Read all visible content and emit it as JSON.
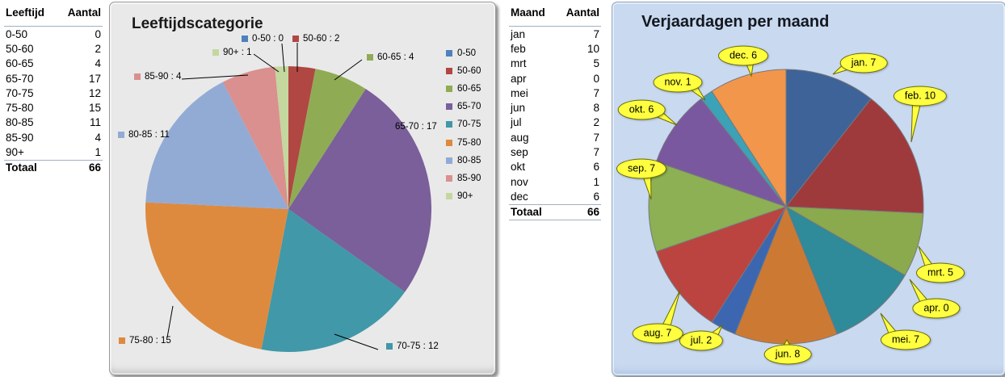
{
  "age_table": {
    "header": {
      "category": "Leeftijd",
      "count": "Aantal"
    },
    "rows": [
      [
        "0-50",
        0
      ],
      [
        "50-60",
        2
      ],
      [
        "60-65",
        4
      ],
      [
        "65-70",
        17
      ],
      [
        "70-75",
        12
      ],
      [
        "75-80",
        15
      ],
      [
        "80-85",
        11
      ],
      [
        "85-90",
        4
      ],
      [
        "90+",
        1
      ]
    ],
    "total_label": "Totaal",
    "total_value": 66
  },
  "month_table": {
    "header": {
      "category": "Maand",
      "count": "Aantal"
    },
    "rows": [
      [
        "jan",
        7
      ],
      [
        "feb",
        10
      ],
      [
        "mrt",
        5
      ],
      [
        "apr",
        0
      ],
      [
        "mei",
        7
      ],
      [
        "jun",
        8
      ],
      [
        "jul",
        2
      ],
      [
        "aug",
        7
      ],
      [
        "sep",
        7
      ],
      [
        "okt",
        6
      ],
      [
        "nov",
        1
      ],
      [
        "dec",
        6
      ]
    ],
    "total_label": "Totaal",
    "total_value": 66
  },
  "chart_data": [
    {
      "type": "pie",
      "title": "Leeftijdscategorie",
      "categories": [
        "0-50",
        "50-60",
        "60-65",
        "65-70",
        "70-75",
        "75-80",
        "80-85",
        "85-90",
        "90+"
      ],
      "values": [
        0,
        2,
        4,
        17,
        12,
        15,
        11,
        4,
        1
      ],
      "total": 66,
      "label_format": "{category} : {value}",
      "legend_position": "right",
      "legend_entries": [
        "0-50",
        "50-60",
        "60-65",
        "65-70",
        "70-75",
        "75-80",
        "80-85",
        "85-90",
        "90+"
      ],
      "colors": [
        "#4F81BD",
        "#B04743",
        "#8FAC54",
        "#7A5F9A",
        "#4198A8",
        "#DD8A3E",
        "#92ABD5",
        "#D9908F",
        "#C4D79E"
      ],
      "background": "#E9E9E9"
    },
    {
      "type": "pie",
      "title": "Verjaardagen per maand",
      "categories": [
        "jan",
        "feb",
        "mrt",
        "apr",
        "mei",
        "jun",
        "jul",
        "aug",
        "sep",
        "okt",
        "nov",
        "dec"
      ],
      "values": [
        7,
        10,
        5,
        0,
        7,
        8,
        2,
        7,
        7,
        6,
        1,
        6
      ],
      "total": 66,
      "label_format": "{category}. {value}",
      "label_style": "yellow-callout",
      "callout_fill": "#FFFF3F",
      "colors": [
        "#3E6398",
        "#9E3A3C",
        "#8BA94D",
        "#7A5C99",
        "#2F8A99",
        "#CC7A33",
        "#3C67B0",
        "#BB4440",
        "#8CB053",
        "#7A58A0",
        "#3BA2B8",
        "#F2964B"
      ],
      "background": "#C8D9F0"
    }
  ]
}
